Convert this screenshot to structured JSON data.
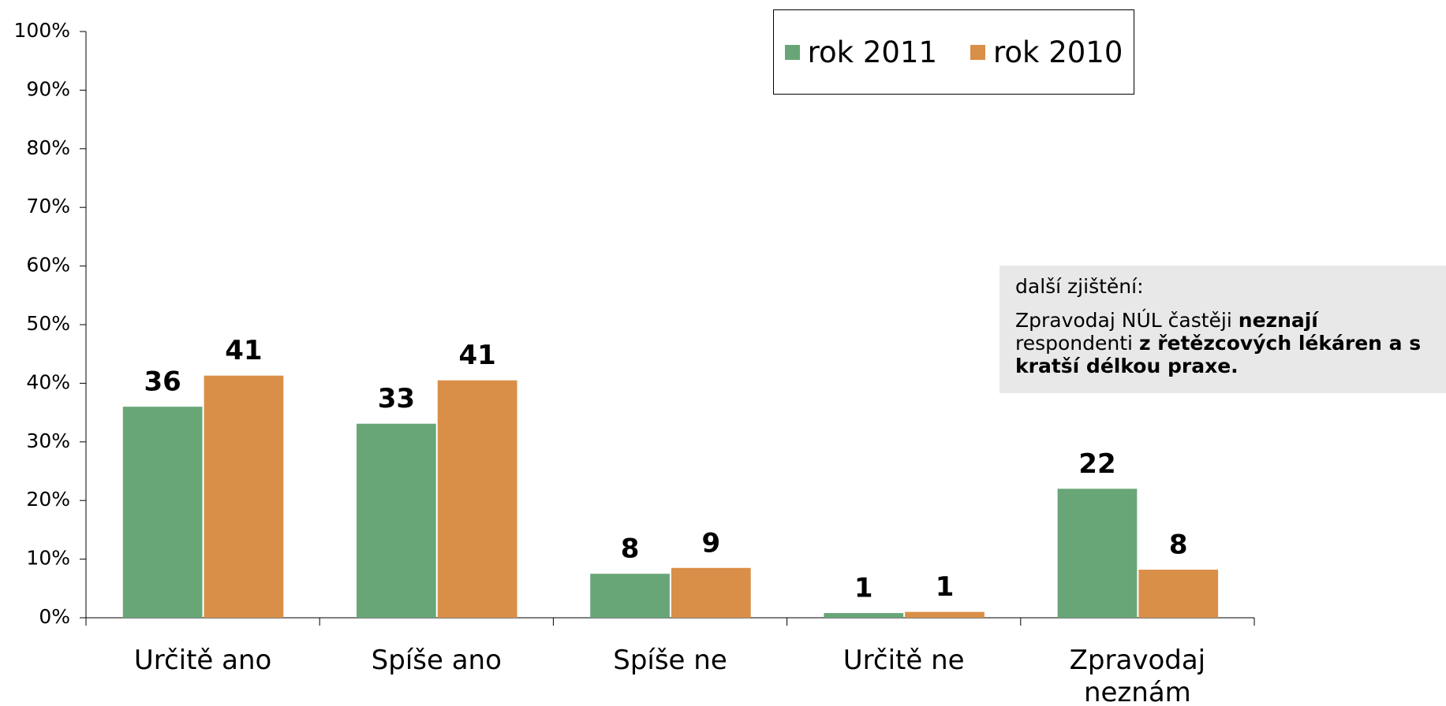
{
  "chart_data": {
    "type": "bar",
    "categories": [
      "Určitě ano",
      "Spíše ano",
      "Spíše ne",
      "Určitě ne",
      "Zpravodaj neznám"
    ],
    "series": [
      {
        "name": "rok 2011",
        "color": "#68a677",
        "values": [
          36,
          33.1,
          7.5,
          0.8,
          22
        ],
        "value_labels": [
          "36",
          "33",
          "8",
          "1",
          "22"
        ]
      },
      {
        "name": "rok 2010",
        "color": "#d98f48",
        "values": [
          41.3,
          40.5,
          8.5,
          1,
          8.2
        ],
        "value_labels": [
          "41",
          "41",
          "9",
          "1",
          "8"
        ]
      }
    ],
    "ylim": [
      0,
      100
    ],
    "yticks": [
      {
        "value": 0,
        "label": "0%"
      },
      {
        "value": 10,
        "label": "10%"
      },
      {
        "value": 20,
        "label": "20%"
      },
      {
        "value": 30,
        "label": "30%"
      },
      {
        "value": 40,
        "label": "40%"
      },
      {
        "value": 50,
        "label": "50%"
      },
      {
        "value": 60,
        "label": "60%"
      },
      {
        "value": 70,
        "label": "70%"
      },
      {
        "value": 80,
        "label": "80%"
      },
      {
        "value": 90,
        "label": "90%"
      },
      {
        "value": 100,
        "label": "100%"
      }
    ],
    "grid": false,
    "legend": "top",
    "annotation": {
      "title": "další zjištění:",
      "runs": [
        {
          "text": "Zpravodaj NÚL častěji ",
          "bold": false
        },
        {
          "text": "neznají",
          "bold": true
        },
        {
          "text": " respondenti ",
          "bold": false
        },
        {
          "text": "z řetězcových lékáren a s kratší délkou praxe.",
          "bold": true
        }
      ]
    }
  }
}
